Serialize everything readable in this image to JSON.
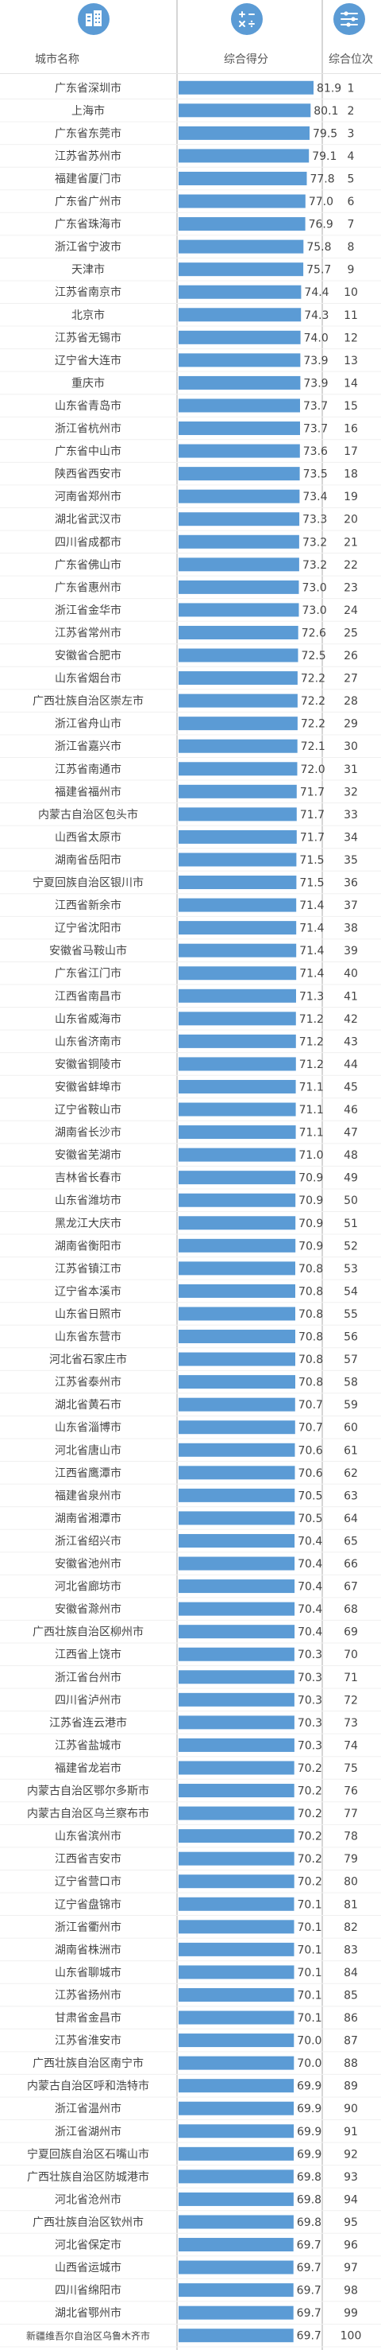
{
  "header": {
    "city_col": "城市名称",
    "score_col": "综合得分",
    "rank_col": "综合位次"
  },
  "colors": {
    "bar": "#5b9bd5",
    "icon": "#5b9bd5",
    "divider": "#d6d6d6"
  },
  "chart_data": {
    "type": "bar",
    "orientation": "horizontal",
    "xlabel": "综合得分",
    "ylabel": "城市名称",
    "categories": [
      "广东省深圳市",
      "上海市",
      "广东省东莞市",
      "江苏省苏州市",
      "福建省厦门市",
      "广东省广州市",
      "广东省珠海市",
      "浙江省宁波市",
      "天津市",
      "江苏省南京市",
      "北京市",
      "江苏省无锡市",
      "辽宁省大连市",
      "重庆市",
      "山东省青岛市",
      "浙江省杭州市",
      "广东省中山市",
      "陕西省西安市",
      "河南省郑州市",
      "湖北省武汉市",
      "四川省成都市",
      "广东省佛山市",
      "广东省惠州市",
      "浙江省金华市",
      "江苏省常州市",
      "安徽省合肥市",
      "山东省烟台市",
      "广西壮族自治区崇左市",
      "浙江省舟山市",
      "浙江省嘉兴市",
      "江苏省南通市",
      "福建省福州市",
      "内蒙古自治区包头市",
      "山西省太原市",
      "湖南省岳阳市",
      "宁夏回族自治区银川市",
      "江西省新余市",
      "辽宁省沈阳市",
      "安徽省马鞍山市",
      "广东省江门市",
      "江西省南昌市",
      "山东省威海市",
      "山东省济南市",
      "安徽省铜陵市",
      "安徽省蚌埠市",
      "辽宁省鞍山市",
      "湖南省长沙市",
      "安徽省芜湖市",
      "吉林省长春市",
      "山东省潍坊市",
      "黑龙江大庆市",
      "湖南省衡阳市",
      "江苏省镇江市",
      "辽宁省本溪市",
      "山东省日照市",
      "山东省东营市",
      "河北省石家庄市",
      "江苏省泰州市",
      "湖北省黄石市",
      "山东省淄博市",
      "河北省唐山市",
      "江西省鹰潭市",
      "福建省泉州市",
      "湖南省湘潭市",
      "浙江省绍兴市",
      "安徽省池州市",
      "河北省廊坊市",
      "安徽省滁州市",
      "广西壮族自治区柳州市",
      "江西省上饶市",
      "浙江省台州市",
      "四川省泸州市",
      "江苏省连云港市",
      "江苏省盐城市",
      "福建省龙岩市",
      "内蒙古自治区鄂尔多斯市",
      "内蒙古自治区乌兰察布市",
      "山东省滨州市",
      "江西省吉安市",
      "辽宁省营口市",
      "辽宁省盘锦市",
      "浙江省衢州市",
      "湖南省株洲市",
      "山东省聊城市",
      "江苏省扬州市",
      "甘肃省金昌市",
      "江苏省淮安市",
      "广西壮族自治区南宁市",
      "内蒙古自治区呼和浩特市",
      "浙江省温州市",
      "浙江省湖州市",
      "宁夏回族自治区石嘴山市",
      "广西壮族自治区防城港市",
      "河北省沧州市",
      "广西壮族自治区钦州市",
      "河北省保定市",
      "山西省运城市",
      "四川省绵阳市",
      "湖北省鄂州市",
      "新疆维吾尔自治区乌鲁木齐市"
    ],
    "values": [
      81.9,
      80.1,
      79.5,
      79.1,
      77.8,
      77.0,
      76.9,
      75.8,
      75.7,
      74.4,
      74.3,
      74.0,
      73.9,
      73.9,
      73.7,
      73.7,
      73.6,
      73.5,
      73.4,
      73.3,
      73.2,
      73.2,
      73.0,
      73.0,
      72.6,
      72.5,
      72.2,
      72.2,
      72.2,
      72.1,
      72.0,
      71.7,
      71.7,
      71.7,
      71.5,
      71.5,
      71.4,
      71.4,
      71.4,
      71.4,
      71.3,
      71.2,
      71.2,
      71.2,
      71.1,
      71.1,
      71.1,
      71.0,
      70.9,
      70.9,
      70.9,
      70.9,
      70.8,
      70.8,
      70.8,
      70.8,
      70.8,
      70.8,
      70.7,
      70.7,
      70.6,
      70.6,
      70.5,
      70.5,
      70.4,
      70.4,
      70.4,
      70.4,
      70.4,
      70.3,
      70.3,
      70.3,
      70.3,
      70.3,
      70.2,
      70.2,
      70.2,
      70.2,
      70.2,
      70.2,
      70.1,
      70.1,
      70.1,
      70.1,
      70.1,
      70.1,
      70.0,
      70.0,
      69.9,
      69.9,
      69.9,
      69.9,
      69.8,
      69.8,
      69.8,
      69.7,
      69.7,
      69.7,
      69.7,
      69.7
    ],
    "ranks": [
      1,
      2,
      3,
      4,
      5,
      6,
      7,
      8,
      9,
      10,
      11,
      12,
      13,
      14,
      15,
      16,
      17,
      18,
      19,
      20,
      21,
      22,
      23,
      24,
      25,
      26,
      27,
      28,
      29,
      30,
      31,
      32,
      33,
      34,
      35,
      36,
      37,
      38,
      39,
      40,
      41,
      42,
      43,
      44,
      45,
      46,
      47,
      48,
      49,
      50,
      51,
      52,
      53,
      54,
      55,
      56,
      57,
      58,
      59,
      60,
      61,
      62,
      63,
      64,
      65,
      66,
      67,
      68,
      69,
      70,
      71,
      72,
      73,
      74,
      75,
      76,
      77,
      78,
      79,
      80,
      81,
      82,
      83,
      84,
      85,
      86,
      87,
      88,
      89,
      90,
      91,
      92,
      93,
      94,
      95,
      96,
      97,
      98,
      99,
      100
    ],
    "xlim": [
      0,
      81.9
    ]
  }
}
